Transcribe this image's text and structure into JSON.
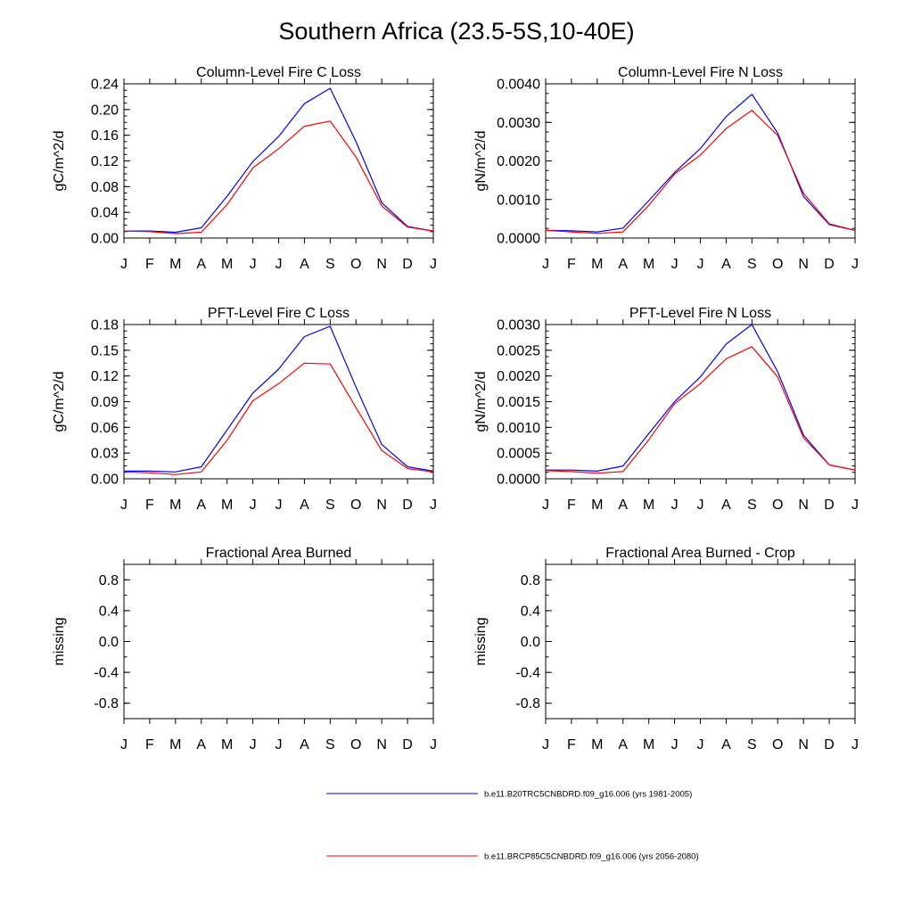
{
  "title": "Southern Africa (23.5-5S,10-40E)",
  "months": [
    "J",
    "F",
    "M",
    "A",
    "M",
    "J",
    "J",
    "A",
    "S",
    "O",
    "N",
    "D",
    "J"
  ],
  "colors": {
    "series1": "#0000ff",
    "series2": "#ff0000",
    "axis": "#000000"
  },
  "chart_data": [
    {
      "type": "line",
      "title": "Column-Level Fire C Loss",
      "ylabel": "gC/m^2/d",
      "ylim": [
        0,
        0.24
      ],
      "yticks": [
        "0.00",
        "0.04",
        "0.08",
        "0.12",
        "0.16",
        "0.20",
        "0.24"
      ],
      "x": [
        "J",
        "F",
        "M",
        "A",
        "M",
        "J",
        "J",
        "A",
        "S",
        "O",
        "N",
        "D",
        "J"
      ],
      "series": [
        {
          "name": "b.e11.B20TRC5CNBDRD.f09_g16.006 (yrs 1981-2005)",
          "values": [
            0.011,
            0.011,
            0.009,
            0.016,
            0.065,
            0.119,
            0.158,
            0.209,
            0.233,
            0.15,
            0.055,
            0.018,
            0.011
          ]
        },
        {
          "name": "b.e11.BRCP85C5CNBDRD.f09_g16.006 (yrs 2056-2080)",
          "values": [
            0.011,
            0.01,
            0.007,
            0.009,
            0.052,
            0.109,
            0.139,
            0.174,
            0.182,
            0.126,
            0.05,
            0.017,
            0.011
          ]
        }
      ]
    },
    {
      "type": "line",
      "title": "Column-Level Fire N Loss",
      "ylabel": "gN/m^2/d",
      "ylim": [
        0,
        0.004
      ],
      "yticks": [
        "0.0000",
        "0.0010",
        "0.0020",
        "0.0030",
        "0.0040"
      ],
      "x": [
        "J",
        "F",
        "M",
        "A",
        "M",
        "J",
        "J",
        "A",
        "S",
        "O",
        "N",
        "D",
        "J"
      ],
      "series": [
        {
          "name": "b.e11.B20TRC5CNBDRD.f09_g16.006 (yrs 1981-2005)",
          "values": [
            0.0002,
            0.00019,
            0.00016,
            0.00026,
            0.00097,
            0.0017,
            0.00232,
            0.00315,
            0.00373,
            0.00272,
            0.00108,
            0.00035,
            0.0002
          ]
        },
        {
          "name": "b.e11.BRCP85C5CNBDRD.f09_g16.006 (yrs 2056-2080)",
          "values": [
            0.0002,
            0.00016,
            0.00012,
            0.00016,
            0.00085,
            0.00166,
            0.00215,
            0.00284,
            0.00331,
            0.00266,
            0.00116,
            0.00037,
            0.0002
          ]
        }
      ]
    },
    {
      "type": "line",
      "title": "PFT-Level Fire C Loss",
      "ylabel": "gC/m^2/d",
      "ylim": [
        0,
        0.18
      ],
      "yticks": [
        "0.00",
        "0.03",
        "0.06",
        "0.09",
        "0.12",
        "0.15",
        "0.18"
      ],
      "x": [
        "J",
        "F",
        "M",
        "A",
        "M",
        "J",
        "J",
        "A",
        "S",
        "O",
        "N",
        "D",
        "J"
      ],
      "series": [
        {
          "name": "b.e11.B20TRC5CNBDRD.f09_g16.006 (yrs 1981-2005)",
          "values": [
            0.009,
            0.009,
            0.008,
            0.014,
            0.057,
            0.1,
            0.128,
            0.166,
            0.178,
            0.107,
            0.04,
            0.014,
            0.009
          ]
        },
        {
          "name": "b.e11.BRCP85C5CNBDRD.f09_g16.006 (yrs 2056-2080)",
          "values": [
            0.008,
            0.007,
            0.005,
            0.008,
            0.045,
            0.091,
            0.111,
            0.135,
            0.134,
            0.083,
            0.033,
            0.012,
            0.008
          ]
        }
      ]
    },
    {
      "type": "line",
      "title": "PFT-Level Fire N Loss",
      "ylabel": "gN/m^2/d",
      "ylim": [
        0,
        0.003
      ],
      "yticks": [
        "0.0000",
        "0.0005",
        "0.0010",
        "0.0015",
        "0.0020",
        "0.0025",
        "0.0030"
      ],
      "x": [
        "J",
        "F",
        "M",
        "A",
        "M",
        "J",
        "J",
        "A",
        "S",
        "O",
        "N",
        "D",
        "J"
      ],
      "series": [
        {
          "name": "b.e11.B20TRC5CNBDRD.f09_g16.006 (yrs 1981-2005)",
          "values": [
            0.00017,
            0.00017,
            0.00015,
            0.00025,
            0.00088,
            0.0015,
            0.00198,
            0.00262,
            0.003,
            0.00208,
            0.00085,
            0.00027,
            0.00017
          ]
        },
        {
          "name": "b.e11.BRCP85C5CNBDRD.f09_g16.006 (yrs 2056-2080)",
          "values": [
            0.00016,
            0.00014,
            0.00011,
            0.00014,
            0.00076,
            0.00146,
            0.00185,
            0.00233,
            0.00257,
            0.00198,
            0.0008,
            0.00027,
            0.00017
          ]
        }
      ]
    },
    {
      "type": "line",
      "title": "Fractional Area Burned",
      "ylabel": "missing",
      "ylim": [
        -1,
        1
      ],
      "yticks": [
        "-0.8",
        "-0.4",
        "0.0",
        "0.4",
        "0.8"
      ],
      "ytick_values": [
        -0.8,
        -0.4,
        0.0,
        0.4,
        0.8
      ],
      "x": [
        "J",
        "F",
        "M",
        "A",
        "M",
        "J",
        "J",
        "A",
        "S",
        "O",
        "N",
        "D",
        "J"
      ],
      "series": []
    },
    {
      "type": "line",
      "title": "Fractional Area Burned - Crop",
      "ylabel": "missing",
      "ylim": [
        -1,
        1
      ],
      "yticks": [
        "-0.8",
        "-0.4",
        "0.0",
        "0.4",
        "0.8"
      ],
      "ytick_values": [
        -0.8,
        -0.4,
        0.0,
        0.4,
        0.8
      ],
      "x": [
        "J",
        "F",
        "M",
        "A",
        "M",
        "J",
        "J",
        "A",
        "S",
        "O",
        "N",
        "D",
        "J"
      ],
      "series": []
    }
  ],
  "legend": [
    {
      "label": "b.e11.B20TRC5CNBDRD.f09_g16.006 (yrs 1981-2005)",
      "color": "#0000ff"
    },
    {
      "label": "b.e11.BRCP85C5CNBDRD.f09_g16.006 (yrs 2056-2080)",
      "color": "#ff0000"
    }
  ]
}
